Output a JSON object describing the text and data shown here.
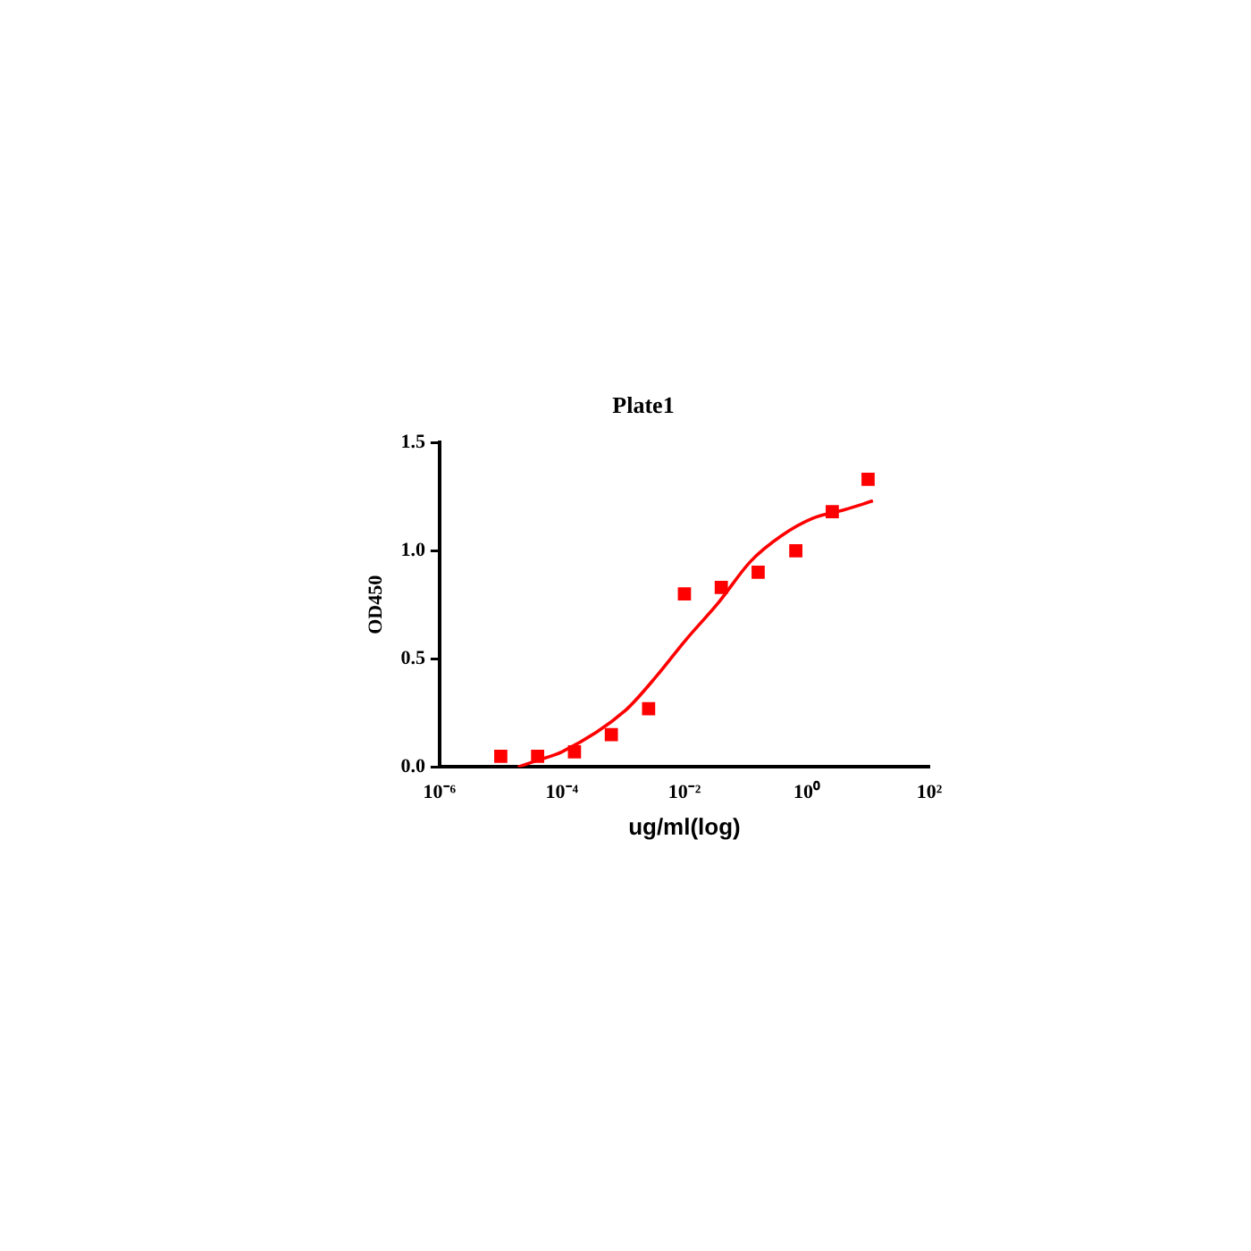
{
  "chart_data": {
    "type": "scatter",
    "title": "Plate1",
    "xlabel": "ug/ml(log)",
    "ylabel": "OD450",
    "log": "x",
    "xlim": [
      1e-06,
      100
    ],
    "xticks": [
      {
        "value": 1e-06,
        "label": "10⁻⁶"
      },
      {
        "value": 0.0001,
        "label": "10⁻⁴"
      },
      {
        "value": 0.01,
        "label": "10⁻²"
      },
      {
        "value": 1,
        "label": "10⁰"
      },
      {
        "value": 100,
        "label": "10²"
      }
    ],
    "ylim": [
      0,
      1.5
    ],
    "yticks": [
      {
        "value": 0,
        "label": "0.0"
      },
      {
        "value": 0.5,
        "label": "0.5"
      },
      {
        "value": 1,
        "label": "1.0"
      },
      {
        "value": 1.5,
        "label": "1.5"
      }
    ],
    "grid": false,
    "legend": false,
    "marker": "square",
    "series": [
      {
        "type": "scatter",
        "color": "#ff0000",
        "x": [
          1e-05,
          4e-05,
          0.00016,
          0.00064,
          0.0026,
          0.01,
          0.04,
          0.16,
          0.66,
          2.6,
          10
        ],
        "values": [
          0.05,
          0.05,
          0.07,
          0.15,
          0.27,
          0.8,
          0.83,
          0.9,
          1.0,
          1.18,
          1.33
        ]
      },
      {
        "type": "line",
        "color": "#ff0000",
        "marker": "none",
        "x": [
          1.9e-05,
          3.9e-05,
          0.0001,
          0.00107,
          0.0035,
          0.0107,
          0.036,
          0.12,
          0.39,
          1.26,
          4.2,
          12
        ],
        "values": [
          0,
          0.03,
          0.07,
          0.26,
          0.42,
          0.59,
          0.76,
          0.95,
          1.07,
          1.15,
          1.19,
          1.23
        ]
      }
    ]
  }
}
